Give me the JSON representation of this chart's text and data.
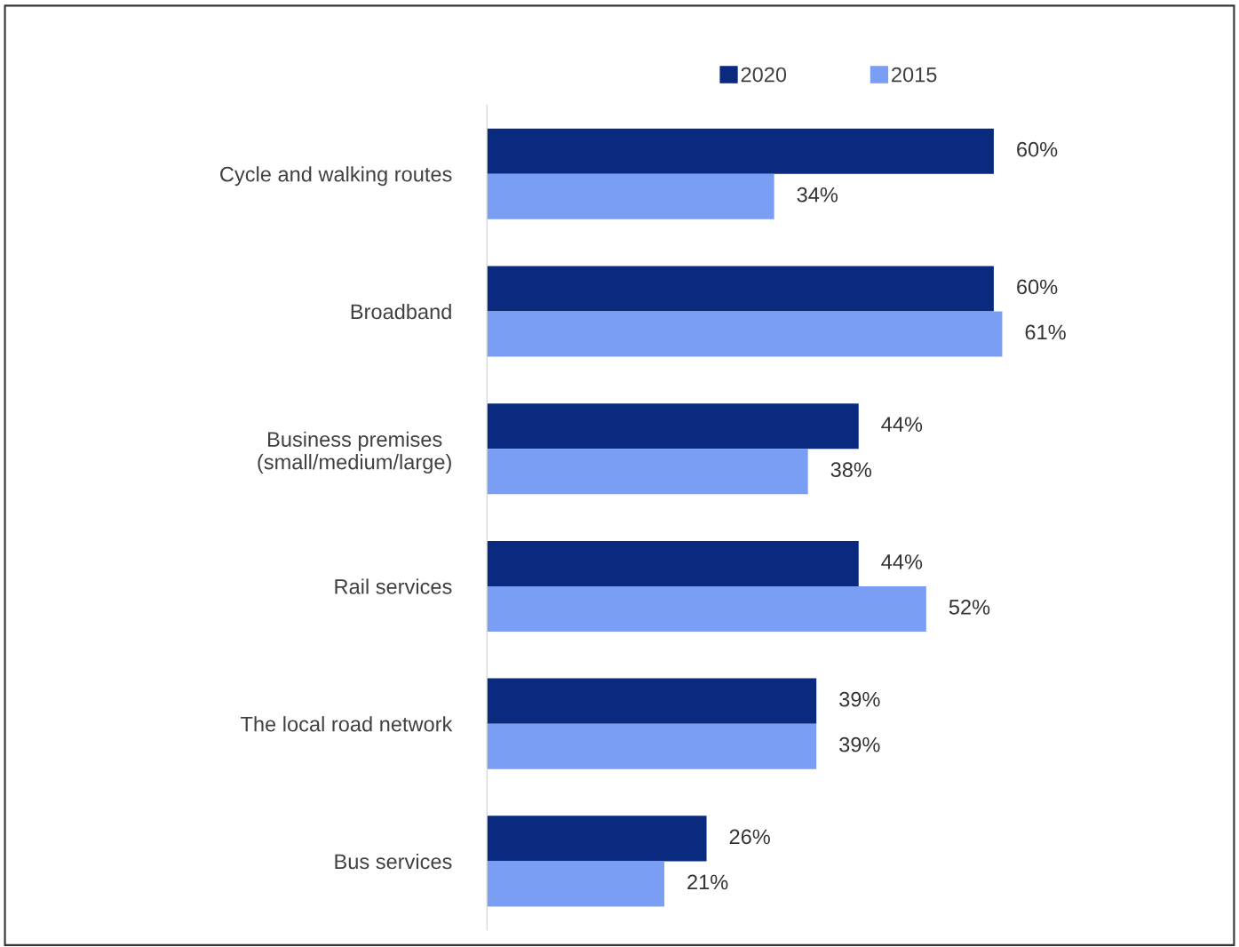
{
  "chart_data": {
    "type": "bar",
    "orientation": "horizontal",
    "categories": [
      "Cycle and walking routes",
      "Broadband",
      "Business premises\n(small/medium/large)",
      "Rail services",
      "The local road network",
      "Bus services"
    ],
    "series": [
      {
        "name": "2020",
        "color": "#0a2a80",
        "values": [
          60,
          60,
          44,
          44,
          39,
          26
        ],
        "value_labels": [
          "60%",
          "60%",
          "44%",
          "44%",
          "39%",
          "26%"
        ]
      },
      {
        "name": "2015",
        "color": "#7b9ef5",
        "values": [
          34,
          61,
          38,
          52,
          39,
          21
        ],
        "value_labels": [
          "34%",
          "61%",
          "38%",
          "52%",
          "39%",
          "21%"
        ]
      }
    ],
    "xlim": [
      0,
      88
    ],
    "tick_labels": "y",
    "grid": false,
    "legend": "top"
  }
}
